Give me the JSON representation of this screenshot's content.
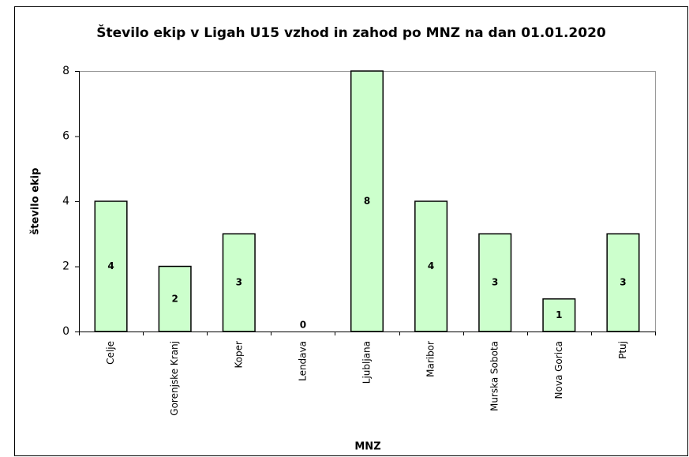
{
  "chart_data": {
    "type": "bar",
    "title": "Število ekip v Ligah U15 vzhod in zahod po MNZ na dan 01.01.2020",
    "x_label": "MNZ",
    "y_label": "število ekip",
    "categories": [
      "Celje",
      "Gorenjske Kranj",
      "Koper",
      "Lendava",
      "Ljubljana",
      "Maribor",
      "Murska Sobota",
      "Nova Gorica",
      "Ptuj"
    ],
    "values": [
      4,
      2,
      3,
      0,
      8,
      4,
      3,
      1,
      3
    ],
    "color": "#ccffcc",
    "ylim": [
      0,
      8
    ],
    "yticks": [
      0,
      2,
      4,
      6,
      8
    ],
    "grid": false
  }
}
